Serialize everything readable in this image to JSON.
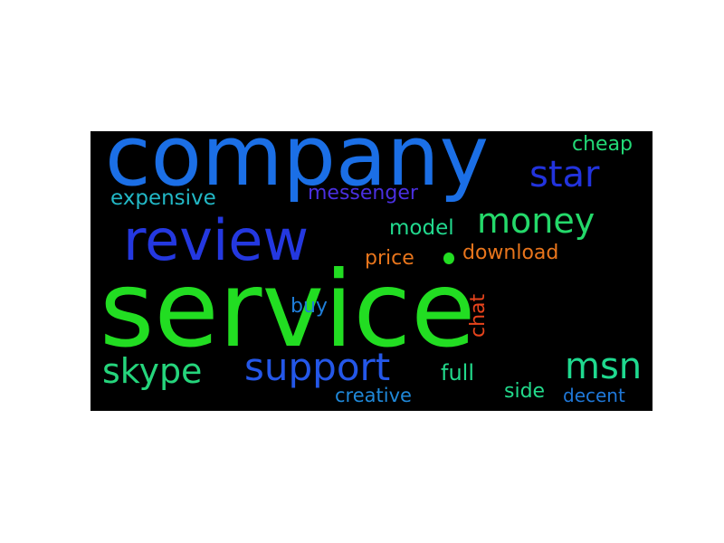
{
  "cloud": {
    "background": "#000000",
    "words": {
      "service": {
        "text": "service",
        "color": "#22dd22"
      },
      "company": {
        "text": "company",
        "color": "#1b6fe6"
      },
      "review": {
        "text": "review",
        "color": "#2438e0"
      },
      "star": {
        "text": "star",
        "color": "#2233dd"
      },
      "money": {
        "text": "money",
        "color": "#24d96a"
      },
      "support": {
        "text": "support",
        "color": "#2457e8"
      },
      "skype": {
        "text": "skype",
        "color": "#25d57c"
      },
      "msn": {
        "text": "msn",
        "color": "#1fd98f"
      },
      "expensive": {
        "text": "expensive",
        "color": "#22b8c6"
      },
      "messenger": {
        "text": "messenger",
        "color": "#4a2fe0"
      },
      "cheap": {
        "text": "cheap",
        "color": "#22d976"
      },
      "model": {
        "text": "model",
        "color": "#22d98e"
      },
      "download": {
        "text": "download",
        "color": "#e8751c"
      },
      "price": {
        "text": "price",
        "color": "#e8751c"
      },
      "buy": {
        "text": "buy",
        "color": "#1f7ed9"
      },
      "chat": {
        "text": "chat",
        "color": "#e8441c"
      },
      "full": {
        "text": "full",
        "color": "#22d98b"
      },
      "side": {
        "text": "side",
        "color": "#22d98b"
      },
      "creative": {
        "text": "creative",
        "color": "#1f88d9"
      },
      "decent": {
        "text": "decent",
        "color": "#1f78d9"
      }
    },
    "dot_color": "#22dd22"
  }
}
